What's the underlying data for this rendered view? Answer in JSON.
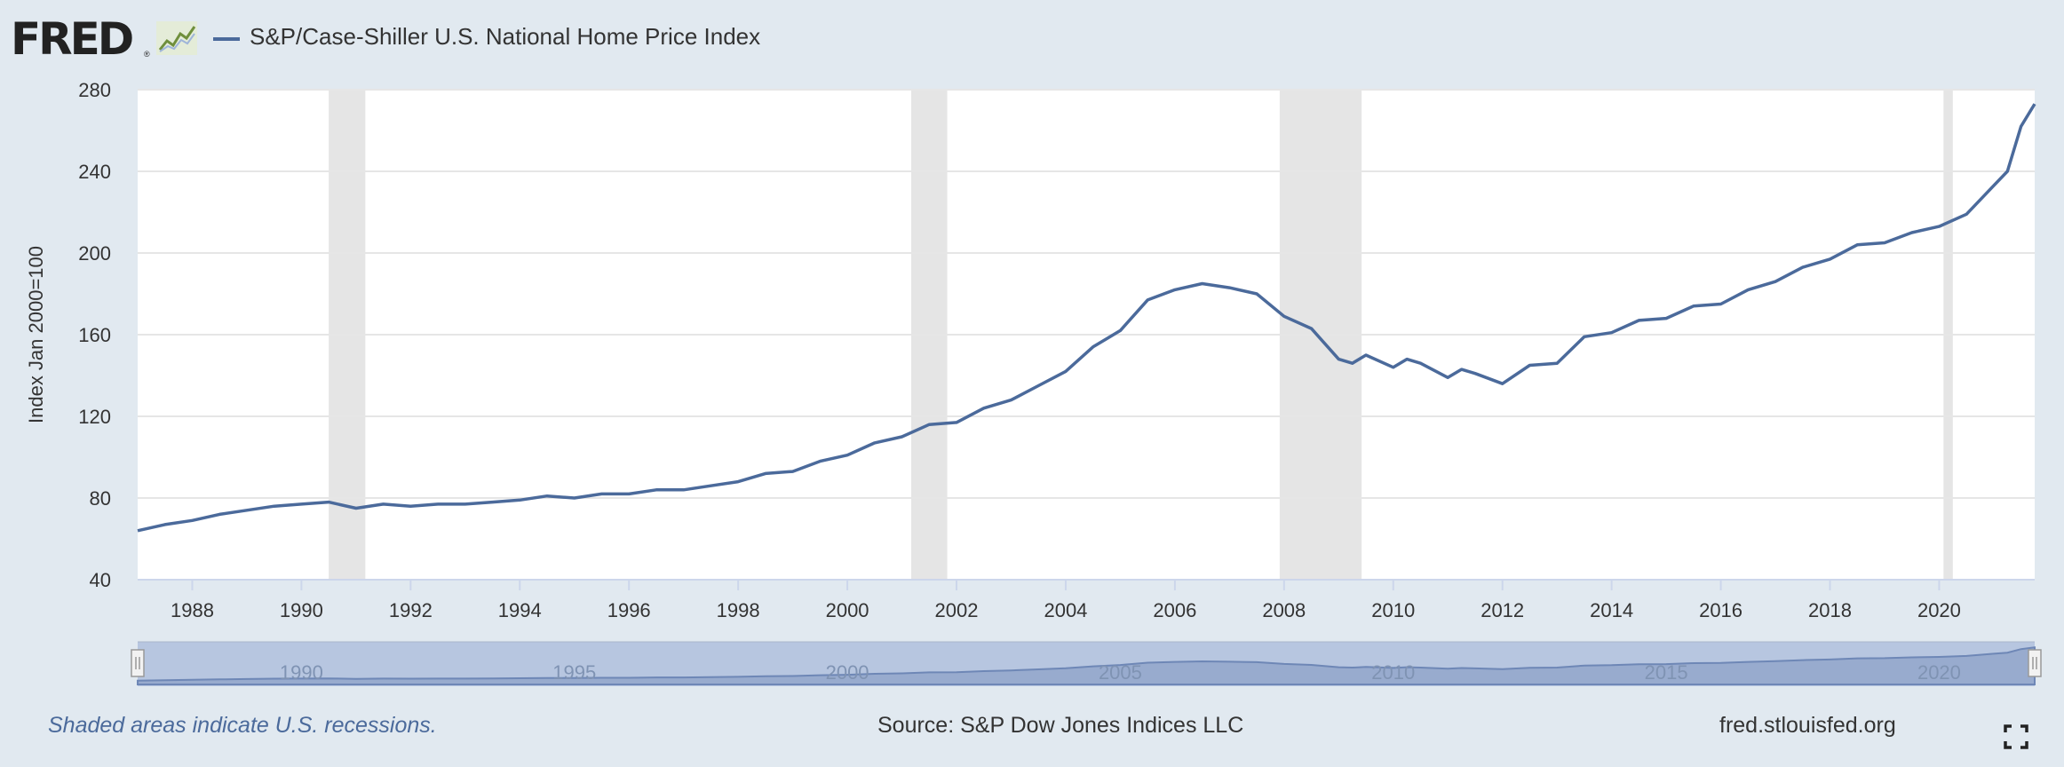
{
  "header": {
    "logo_text": "FRED",
    "logo_reg": "®",
    "legend_label": "S&P/Case-Shiller U.S. National Home Price Index"
  },
  "footer": {
    "note": "Shaded areas indicate U.S. recessions.",
    "source": "Source: S&P Dow Jones Indices LLC",
    "site": "fred.stlouisfed.org"
  },
  "colors": {
    "series": "#4b6a9b",
    "recession": "#e5e5e5",
    "background": "#e1e9f0",
    "plot": "#ffffff",
    "navigator": "#b7c6e0",
    "navigator_series": "#8ea2c8"
  },
  "icons": [
    "graph-icon",
    "fullscreen-icon"
  ],
  "chart_data": {
    "type": "line",
    "title": "",
    "xlabel": "",
    "ylabel": "Index Jan 2000=100",
    "xlim": [
      1987.0,
      2021.75
    ],
    "ylim": [
      40,
      280
    ],
    "yticks": [
      40,
      80,
      120,
      160,
      200,
      240,
      280
    ],
    "xticks": [
      1988,
      1990,
      1992,
      1994,
      1996,
      1998,
      2000,
      2002,
      2004,
      2006,
      2008,
      2010,
      2012,
      2014,
      2016,
      2018,
      2020
    ],
    "grid": true,
    "legend": "top-left",
    "recessions": [
      [
        1990.5,
        1991.17
      ],
      [
        2001.17,
        2001.83
      ],
      [
        2007.92,
        2009.42
      ],
      [
        2020.08,
        2020.25
      ]
    ],
    "navigator_ticks": [
      1990,
      1995,
      2000,
      2005,
      2010,
      2015,
      2020
    ],
    "series": [
      {
        "name": "S&P/Case-Shiller U.S. National Home Price Index",
        "x": [
          1987.0,
          1987.5,
          1988.0,
          1988.5,
          1989.0,
          1989.5,
          1990.0,
          1990.5,
          1991.0,
          1991.5,
          1992.0,
          1992.5,
          1993.0,
          1993.5,
          1994.0,
          1994.5,
          1995.0,
          1995.5,
          1996.0,
          1996.5,
          1997.0,
          1997.5,
          1998.0,
          1998.5,
          1999.0,
          1999.5,
          2000.0,
          2000.5,
          2001.0,
          2001.5,
          2002.0,
          2002.5,
          2003.0,
          2003.5,
          2004.0,
          2004.5,
          2005.0,
          2005.5,
          2006.0,
          2006.5,
          2007.0,
          2007.5,
          2008.0,
          2008.5,
          2009.0,
          2009.25,
          2009.5,
          2010.0,
          2010.25,
          2010.5,
          2011.0,
          2011.25,
          2011.5,
          2012.0,
          2012.5,
          2013.0,
          2013.5,
          2014.0,
          2014.5,
          2015.0,
          2015.5,
          2016.0,
          2016.5,
          2017.0,
          2017.5,
          2018.0,
          2018.5,
          2019.0,
          2019.5,
          2020.0,
          2020.5,
          2021.0,
          2021.25,
          2021.5,
          2021.75
        ],
        "values": [
          64,
          67,
          69,
          72,
          74,
          76,
          77,
          78,
          75,
          77,
          76,
          77,
          77,
          78,
          79,
          81,
          80,
          82,
          82,
          84,
          84,
          86,
          88,
          92,
          93,
          98,
          101,
          107,
          110,
          116,
          117,
          124,
          128,
          135,
          142,
          154,
          162,
          177,
          182,
          185,
          183,
          180,
          169,
          163,
          148,
          146,
          150,
          144,
          148,
          146,
          139,
          143,
          141,
          136,
          145,
          146,
          159,
          161,
          167,
          168,
          174,
          175,
          182,
          186,
          193,
          197,
          204,
          205,
          210,
          213,
          219,
          233,
          240,
          262,
          273
        ]
      }
    ]
  }
}
